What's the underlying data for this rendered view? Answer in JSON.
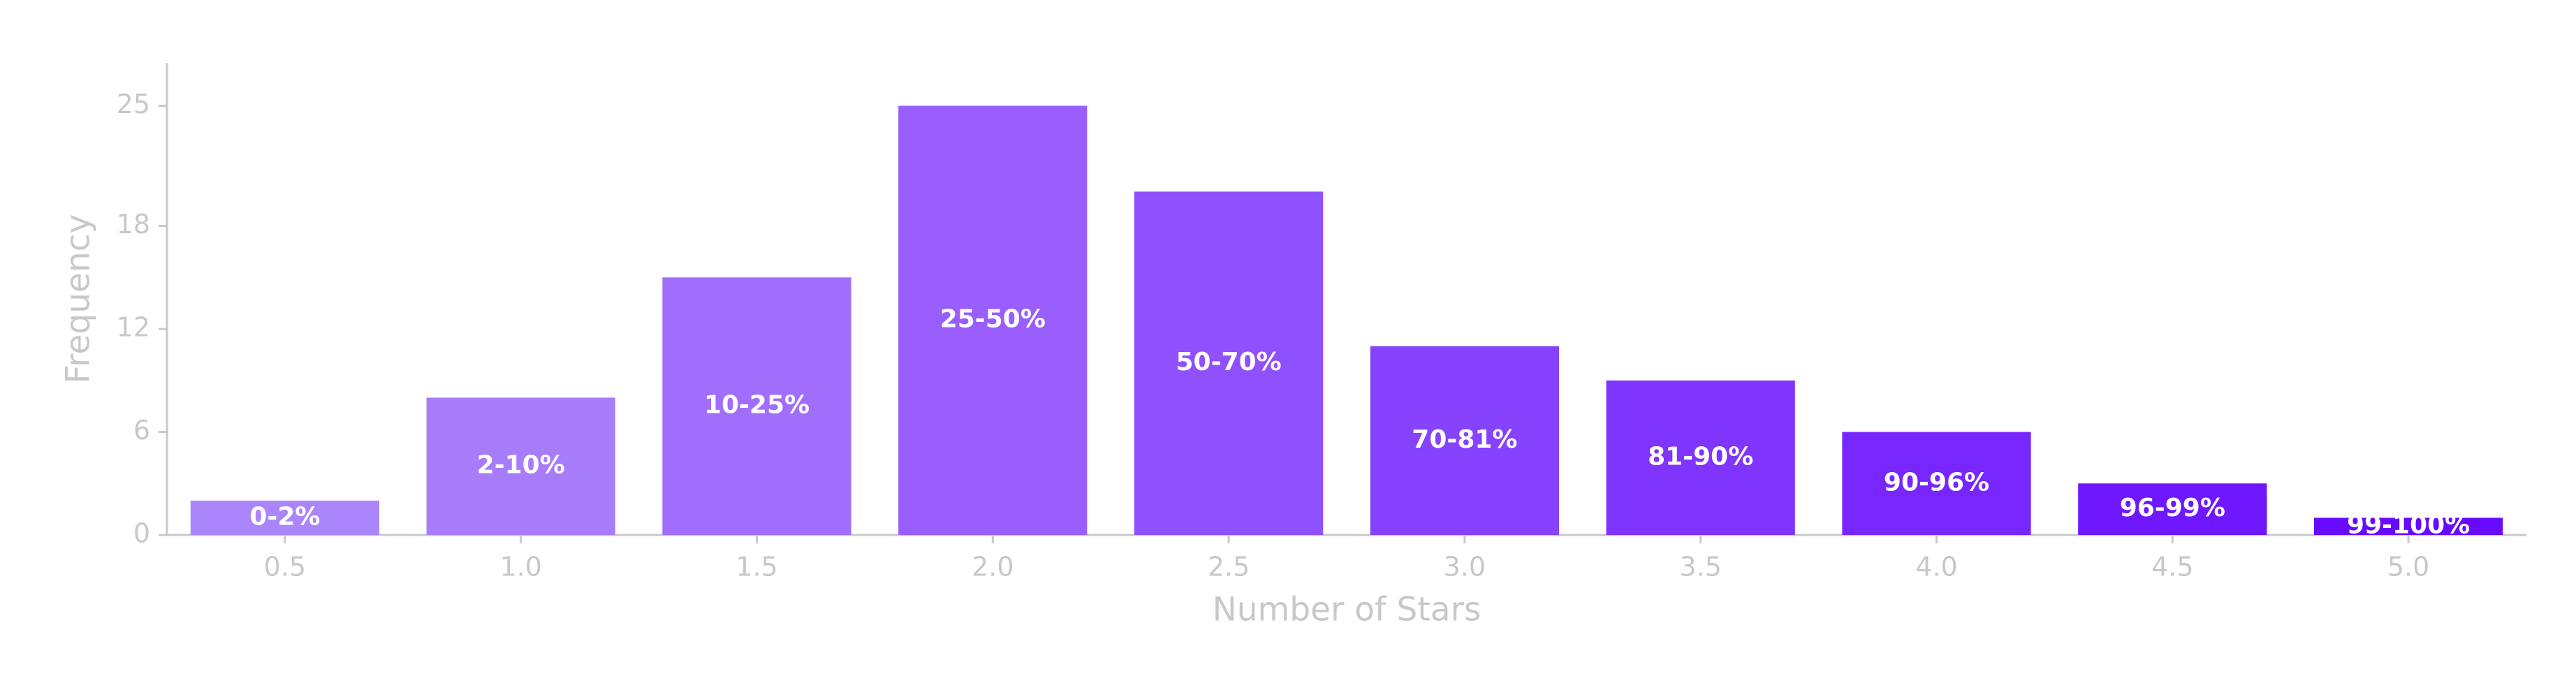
{
  "chart_data": {
    "type": "bar",
    "x_label": "Number of Stars",
    "y_label": "Frequency",
    "x": [
      0.5,
      1.0,
      1.5,
      2.0,
      2.5,
      3.0,
      3.5,
      4.0,
      4.5,
      5.0
    ],
    "values": [
      2,
      8,
      15,
      25,
      20,
      11,
      9,
      6,
      3,
      1
    ],
    "labels": [
      "0-2%",
      "2-10%",
      "10-25%",
      "25-50%",
      "50-70%",
      "70-81%",
      "81-90%",
      "90-96%",
      "96-99%",
      "99-100%"
    ],
    "colors": [
      "#ab86fb",
      "#a77cfb",
      "#a06dfc",
      "#995efd",
      "#8f50fd",
      "#8642fd",
      "#7f35fd",
      "#7727fe",
      "#6f17fe",
      "#670afe"
    ],
    "xlim": [
      0.25,
      5.25
    ],
    "ylim": [
      0,
      27.5
    ],
    "xticks": [
      0.5,
      {
        "value": 1,
        "label": "1.0"
      },
      1.5,
      {
        "value": 2,
        "label": "2.0"
      },
      2.5,
      {
        "value": 3,
        "label": "3.0"
      },
      3.5,
      {
        "value": 4,
        "label": "4.0"
      },
      4.5,
      {
        "value": 5,
        "label": "5.0"
      }
    ],
    "yticks": [
      0,
      6,
      12,
      18,
      25
    ],
    "grid": false
  }
}
